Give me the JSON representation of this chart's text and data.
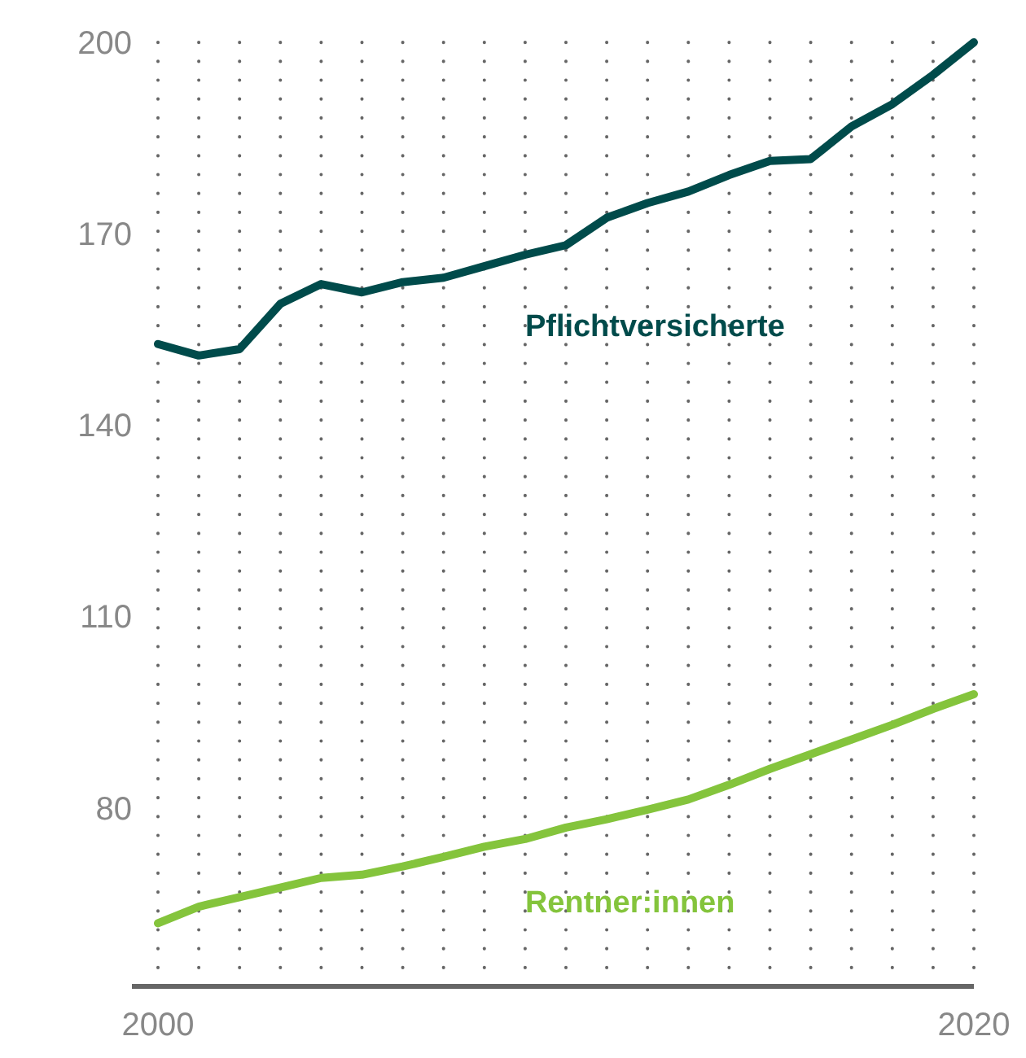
{
  "chart_data": {
    "type": "line",
    "x": [
      2000,
      2001,
      2002,
      2003,
      2004,
      2005,
      2006,
      2007,
      2008,
      2009,
      2010,
      2011,
      2012,
      2013,
      2014,
      2015,
      2016,
      2017,
      2018,
      2019,
      2020
    ],
    "series": [
      {
        "name": "Pflichtversicherte",
        "color": "#004b4b",
        "values": [
          152.7,
          150.9,
          151.9,
          159,
          162.1,
          160.8,
          162.4,
          163.1,
          164.9,
          166.7,
          168.2,
          172.5,
          174.8,
          176.6,
          179.2,
          181.4,
          181.7,
          186.8,
          190.3,
          194.9,
          200
        ]
      },
      {
        "name": "Rentner:innen",
        "color": "#84c43c",
        "values": [
          61.9,
          64.5,
          66,
          67.5,
          69,
          69.5,
          70.8,
          72.3,
          73.9,
          75.1,
          76.9,
          78.2,
          79.7,
          81.3,
          83.6,
          86.1,
          88.4,
          90.7,
          93,
          95.5,
          97.8
        ]
      }
    ],
    "xlim": [
      2000,
      2020
    ],
    "xticks": [
      2000,
      {
        "value": 2001,
        "label": null
      },
      {
        "value": 2002,
        "label": null
      },
      {
        "value": 2003,
        "label": null
      },
      {
        "value": 2004,
        "label": null
      },
      {
        "value": 2005,
        "label": null
      },
      {
        "value": 2006,
        "label": null
      },
      {
        "value": 2007,
        "label": null
      },
      {
        "value": 2008,
        "label": null
      },
      {
        "value": 2009,
        "label": null
      },
      {
        "value": 2010,
        "label": null
      },
      {
        "value": 2011,
        "label": null
      },
      {
        "value": 2012,
        "label": null
      },
      {
        "value": 2013,
        "label": null
      },
      {
        "value": 2014,
        "label": null
      },
      {
        "value": 2015,
        "label": null
      },
      {
        "value": 2016,
        "label": null
      },
      {
        "value": 2017,
        "label": null
      },
      {
        "value": 2018,
        "label": null
      },
      {
        "value": 2019,
        "label": null
      },
      2020
    ],
    "ylim": [
      52,
      200
    ],
    "yticks": [
      80,
      110,
      140,
      170,
      200
    ],
    "grid": "x",
    "marker": "none",
    "line_style": "solid"
  }
}
